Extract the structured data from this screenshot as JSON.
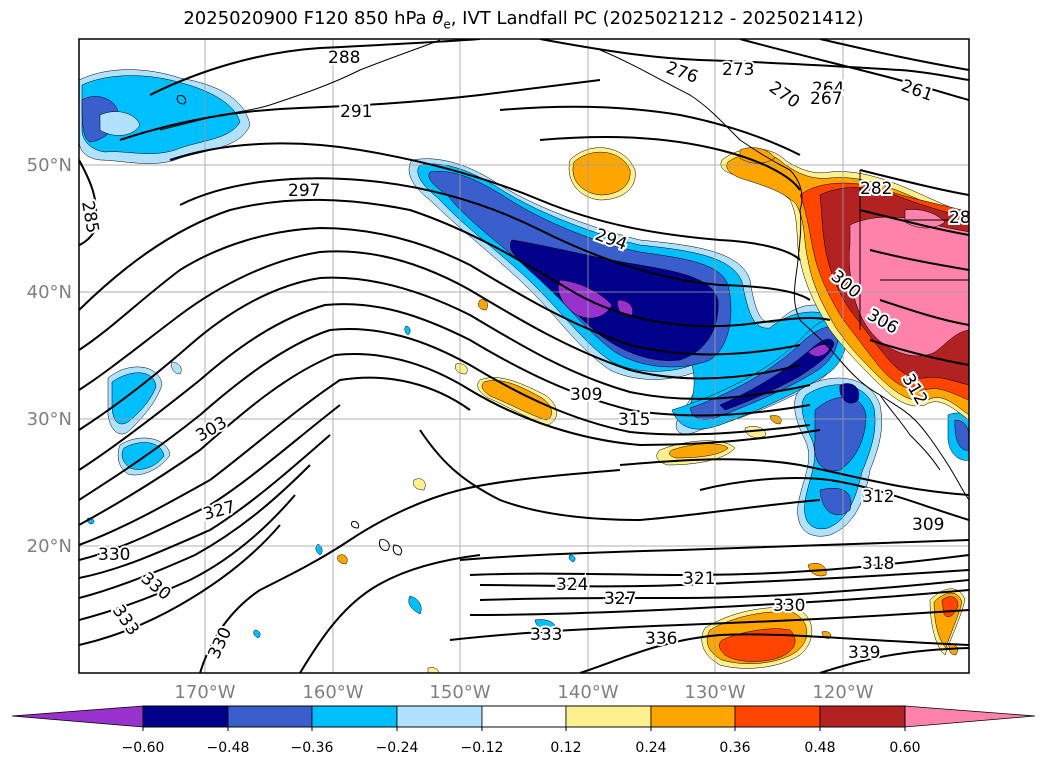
{
  "title": {
    "prefix": "2025020900 F120 850 hPa ",
    "symbol": "θ",
    "subscript": "e",
    "suffix": ", IVT Landfall PC (2025021212 - 2025021412)"
  },
  "axes": {
    "lon_labels": [
      "170°W",
      "160°W",
      "150°W",
      "140°W",
      "130°W",
      "120°W"
    ],
    "lat_labels": [
      "50°N",
      "40°N",
      "30°N",
      "20°N"
    ],
    "tick_color": "#808080"
  },
  "colorbar": {
    "colors": [
      "#9932cc",
      "#00008b",
      "#3a5fcd",
      "#00bfff",
      "#b0e2ff",
      "#ffffff",
      "#fff08f",
      "#ffa500",
      "#ff4500",
      "#b22222",
      "#ff82ab"
    ],
    "tick_labels": [
      "−0.60",
      "−0.48",
      "−0.36",
      "−0.24",
      "−0.12",
      "0.12",
      "0.24",
      "0.36",
      "0.48",
      "0.60"
    ]
  },
  "contour_labels": [
    "288",
    "291",
    "297",
    "294",
    "285",
    "303",
    "309",
    "315",
    "327",
    "330",
    "330",
    "333",
    "330",
    "333",
    "324",
    "327",
    "321",
    "336",
    "330",
    "312",
    "309",
    "318",
    "339",
    "273",
    "276",
    "270",
    "264",
    "267",
    "261",
    "282",
    "300",
    "306",
    "312",
    "28"
  ],
  "colors": {
    "contour": "#000000",
    "grid": "#a0a0a0"
  }
}
